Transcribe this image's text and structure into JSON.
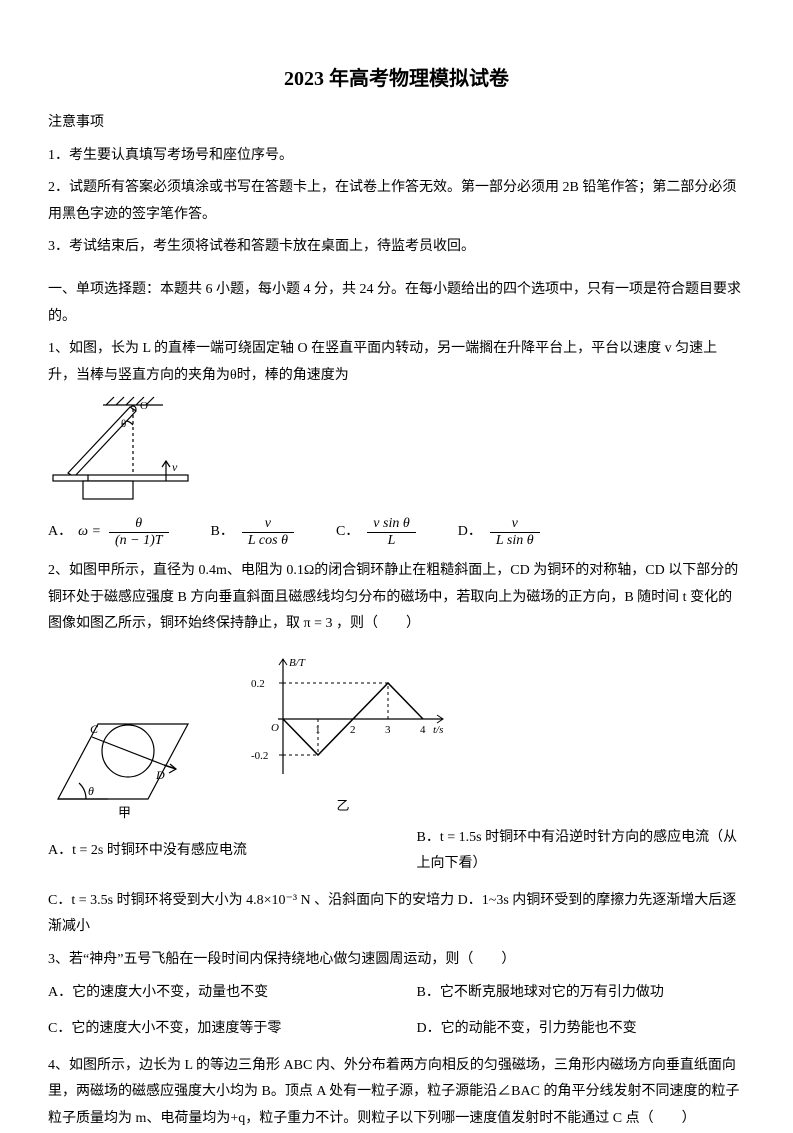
{
  "title": "2023 年高考物理模拟试卷",
  "notes": {
    "heading": "注意事项",
    "items": [
      "1．考生要认真填写考场号和座位序号。",
      "2．试题所有答案必须填涂或书写在答题卡上，在试卷上作答无效。第一部分必须用 2B 铅笔作答；第二部分必须用黑色字迹的签字笔作答。",
      "3．考试结束后，考生须将试卷和答题卡放在桌面上，待监考员收回。"
    ]
  },
  "section1_header": "一、单项选择题：本题共 6 小题，每小题 4 分，共 24 分。在每小题给出的四个选项中，只有一项是符合题目要求的。",
  "q1": {
    "text": "1、如图，长为 L 的直棒一端可绕固定轴 O 在竖直平面内转动，另一端搁在升降平台上，平台以速度 v 匀速上升，当棒与竖直方向的夹角为θ时，棒的角速度为",
    "options": {
      "A": {
        "label": "A．",
        "prefix": "ω =",
        "num": "θ",
        "den": "(n − 1)T"
      },
      "B": {
        "label": "B．",
        "num": "v",
        "den": "L cos θ"
      },
      "C": {
        "label": "C．",
        "num": "v sin θ",
        "den": "L"
      },
      "D": {
        "label": "D．",
        "num": "v",
        "den": "L sin θ"
      }
    },
    "diagram": {
      "width": 150,
      "height": 120,
      "hatch_color": "#000000",
      "rod_label_O": "O",
      "v_label": "v"
    }
  },
  "q2": {
    "text": "2、如图甲所示，直径为 0.4m、电阻为 0.1Ω的闭合铜环静止在粗糙斜面上，CD 为铜环的对称轴，CD 以下部分的铜环处于磁感应强度 B 方向垂直斜面且磁感线均匀分布的磁场中，若取向上为磁场的正方向，B 随时间 t 变化的图像如图乙所示，铜环始终保持静止，取 π = 3 ，则（　　）",
    "chart": {
      "type": "line",
      "x_label": "t/s",
      "y_label": "B/T",
      "x_ticks": [
        1,
        2,
        3,
        4
      ],
      "y_ticks": [
        -0.2,
        0.2
      ],
      "points": [
        [
          0,
          0
        ],
        [
          1,
          -0.2
        ],
        [
          3,
          0.2
        ],
        [
          4,
          0
        ]
      ],
      "axis_color": "#000000",
      "line_color": "#000000",
      "dash_color": "#000000",
      "background": "#ffffff",
      "fontsize": 11
    },
    "left_labels": {
      "C": "C",
      "D": "D",
      "theta": "θ",
      "caption": "甲"
    },
    "right_caption": "乙",
    "options": {
      "A": "A．t = 2s 时铜环中没有感应电流",
      "B": "B．t = 1.5s 时铜环中有沿逆时针方向的感应电流（从上向下看）",
      "C": "C．t = 3.5s 时铜环将受到大小为 4.8×10⁻³ N 、沿斜面向下的安培力",
      "D": "D．1~3s 内铜环受到的摩擦力先逐渐增大后逐渐减小"
    }
  },
  "q3": {
    "text": "3、若“神舟”五号飞船在一段时间内保持绕地心做匀速圆周运动，则（　　）",
    "options": {
      "A": "A．它的速度大小不变，动量也不变",
      "B": "B．它不断克服地球对它的万有引力做功",
      "C": "C．它的速度大小不变，加速度等于零",
      "D": "D．它的动能不变，引力势能也不变"
    }
  },
  "q4": {
    "text": "4、如图所示，边长为 L 的等边三角形 ABC 内、外分布着两方向相反的匀强磁场，三角形内磁场方向垂直纸面向里，两磁场的磁感应强度大小均为 B。顶点 A 处有一粒子源，粒子源能沿∠BAC 的角平分线发射不同速度的粒子粒子质量均为 m、电荷量均为+q，粒子重力不计。则粒子以下列哪一速度值发射时不能通过 C 点（　　）"
  },
  "colors": {
    "text": "#000000",
    "background": "#ffffff"
  }
}
